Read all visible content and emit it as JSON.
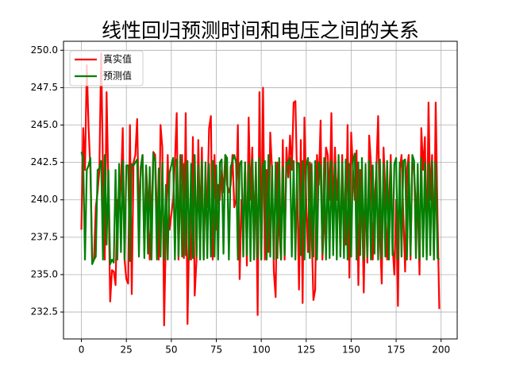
{
  "chart_data": {
    "type": "line",
    "title": "线性回归预测时间和电压之间的关系",
    "x": [
      0,
      1,
      2,
      3,
      4,
      5,
      6,
      7,
      8,
      9,
      10,
      11,
      12,
      13,
      14,
      15,
      16,
      17,
      18,
      19,
      20,
      21,
      22,
      23,
      24,
      25,
      26,
      27,
      28,
      29,
      30,
      31,
      32,
      33,
      34,
      35,
      36,
      37,
      38,
      39,
      40,
      41,
      42,
      43,
      44,
      45,
      46,
      47,
      48,
      49,
      50,
      51,
      52,
      53,
      54,
      55,
      56,
      57,
      58,
      59,
      60,
      61,
      62,
      63,
      64,
      65,
      66,
      67,
      68,
      69,
      70,
      71,
      72,
      73,
      74,
      75,
      76,
      77,
      78,
      79,
      80,
      81,
      82,
      83,
      84,
      85,
      86,
      87,
      88,
      89,
      90,
      91,
      92,
      93,
      94,
      95,
      96,
      97,
      98,
      99,
      100,
      101,
      102,
      103,
      104,
      105,
      106,
      107,
      108,
      109,
      110,
      111,
      112,
      113,
      114,
      115,
      116,
      117,
      118,
      119,
      120,
      121,
      122,
      123,
      124,
      125,
      126,
      127,
      128,
      129,
      130,
      131,
      132,
      133,
      134,
      135,
      136,
      137,
      138,
      139,
      140,
      141,
      142,
      143,
      144,
      145,
      146,
      147,
      148,
      149,
      150,
      151,
      152,
      153,
      154,
      155,
      156,
      157,
      158,
      159,
      160,
      161,
      162,
      163,
      164,
      165,
      166,
      167,
      168,
      169,
      170,
      171,
      172,
      173,
      174,
      175,
      176,
      177,
      178,
      179,
      180,
      181,
      182,
      183,
      184,
      185,
      186,
      187,
      188,
      189,
      190,
      191,
      192,
      193,
      194,
      195,
      196,
      197,
      198,
      199
    ],
    "series": [
      {
        "name": "真实值",
        "color": "#ff0000",
        "values": [
          238,
          244.8,
          242,
          249,
          244.8,
          242,
          235.8,
          236,
          239.5,
          240.5,
          242,
          249.8,
          242,
          236,
          247.2,
          241,
          233.2,
          235.3,
          235.2,
          234.3,
          240,
          239.5,
          241,
          244.8,
          236,
          234.7,
          234.4,
          245,
          233.7,
          242.5,
          243,
          245.4,
          238.8,
          242,
          243,
          236.5,
          242.2,
          240,
          236,
          239,
          243.2,
          243,
          239,
          236,
          245,
          243.5,
          231.6,
          238,
          243,
          238,
          239,
          240,
          242.5,
          245.8,
          236,
          241,
          243,
          236.1,
          245.8,
          231.7,
          238,
          236,
          244.2,
          233.6,
          236,
          244,
          238,
          243.5,
          236,
          241,
          239.5,
          244.8,
          245.6,
          236,
          243,
          238,
          241,
          240,
          242,
          240.5,
          243,
          241,
          240.5,
          241,
          243,
          239.5,
          240,
          245,
          234.7,
          240,
          238,
          242.5,
          235.6,
          245.5,
          240,
          243.5,
          238,
          242,
          232.3,
          247.2,
          236,
          247.5,
          236,
          242,
          236.5,
          244.5,
          242,
          235.2,
          233.5,
          242.5,
          238,
          236,
          244,
          236,
          243.5,
          241.5,
          244.3,
          242,
          246.5,
          246.6,
          241,
          234,
          244,
          233.1,
          245.5,
          240,
          236.5,
          242.5,
          238,
          233.3,
          234,
          243,
          241,
          245.3,
          236,
          238.5,
          243.5,
          243,
          240,
          245.8,
          238.6,
          243.5,
          240,
          242,
          236.3,
          243,
          238.4,
          237,
          245,
          234.8,
          244.5,
          242,
          240,
          243.3,
          234.3,
          242,
          240,
          233.8,
          241,
          235.8,
          244.3,
          242.4,
          236,
          240,
          242,
          245.6,
          237.5,
          234.4,
          243.5,
          240.5,
          236,
          239.5,
          243,
          237,
          235,
          240,
          232.9,
          242,
          243,
          239,
          235.2,
          242,
          243,
          236,
          242.5,
          242,
          239.3,
          240,
          235,
          244.8,
          242,
          244.2,
          236.3,
          246.5,
          240,
          243,
          236,
          246.5,
          239,
          232.7
        ]
      },
      {
        "name": "预测值",
        "color": "#008000",
        "values": [
          243.2,
          242.8,
          236,
          242,
          242.3,
          242.8,
          235.7,
          236,
          236.2,
          242,
          242.1,
          242.6,
          236,
          243,
          237,
          242,
          235.7,
          236,
          235.8,
          242,
          236,
          242.4,
          236.5,
          242.6,
          236,
          242.3,
          242.3,
          235.9,
          242.4,
          242.3,
          242.5,
          242.7,
          236.2,
          242.2,
          243,
          236.1,
          242.3,
          236.4,
          242.2,
          236,
          243.1,
          242.6,
          236,
          242.1,
          236.2,
          242.5,
          236,
          241,
          236,
          241.8,
          242.3,
          242.8,
          236,
          242.7,
          236.2,
          243,
          236.2,
          242.4,
          236.3,
          242.6,
          236,
          242.4,
          236.1,
          243,
          236.2,
          242.3,
          236,
          242.6,
          236,
          242.5,
          236.1,
          242.4,
          236.2,
          242.6,
          236.2,
          242.3,
          236,
          242.5,
          242.7,
          236.4,
          243,
          242.8,
          236,
          242.2,
          242.6,
          243,
          242.5,
          236,
          242.4,
          242.6,
          236.2,
          242.5,
          236.3,
          242.4,
          235.9,
          242.7,
          236,
          242.5,
          236.1,
          242.8,
          236,
          242.3,
          242.6,
          236,
          243,
          236.2,
          242.3,
          236,
          242.5,
          236.1,
          242.8,
          236,
          242.2,
          236.3,
          242.5,
          242.4,
          242.8,
          236.2,
          242.6,
          236,
          242.5,
          242.4,
          236.3,
          242.6,
          236,
          242.3,
          242.8,
          236.1,
          242.4,
          236.2,
          242.6,
          236,
          242.5,
          242.2,
          236.4,
          242.8,
          236,
          242.5,
          236.1,
          242.6,
          236.3,
          242.4,
          236,
          243,
          236.2,
          242.5,
          236.1,
          242.7,
          236,
          242.4,
          236.2,
          242.6,
          243.1,
          236,
          242.5,
          236.3,
          242.8,
          236,
          242.4,
          236.2,
          242.6,
          236,
          242.3,
          236.4,
          242.5,
          236,
          242.7,
          236.1,
          242.4,
          236.2,
          242.6,
          236,
          242.5,
          236.3,
          242.4,
          242.8,
          236,
          242.5,
          236.2,
          242.6,
          242.7,
          236,
          242.5,
          236.3,
          243,
          242.6,
          236.1,
          242.4,
          236,
          242.8,
          236.2,
          242.5,
          236,
          242.4,
          236.3,
          242.6,
          236,
          242.5,
          236.1,
          236
        ]
      }
    ],
    "xlim": [
      -9.95,
      208.95
    ],
    "xticks": [
      0,
      25,
      50,
      75,
      100,
      125,
      150,
      175,
      200
    ],
    "ylim": [
      230.7,
      250.6
    ],
    "yticks": [
      {
        "value": 232.5,
        "label": "232.5"
      },
      {
        "value": 235,
        "label": "235.0"
      },
      {
        "value": 237.5,
        "label": "237.5"
      },
      {
        "value": 240,
        "label": "240.0"
      },
      {
        "value": 242.5,
        "label": "242.5"
      },
      {
        "value": 245,
        "label": "245.0"
      },
      {
        "value": 247.5,
        "label": "247.5"
      },
      {
        "value": 250,
        "label": "250.0"
      }
    ],
    "grid": true,
    "legend": "upper left"
  }
}
